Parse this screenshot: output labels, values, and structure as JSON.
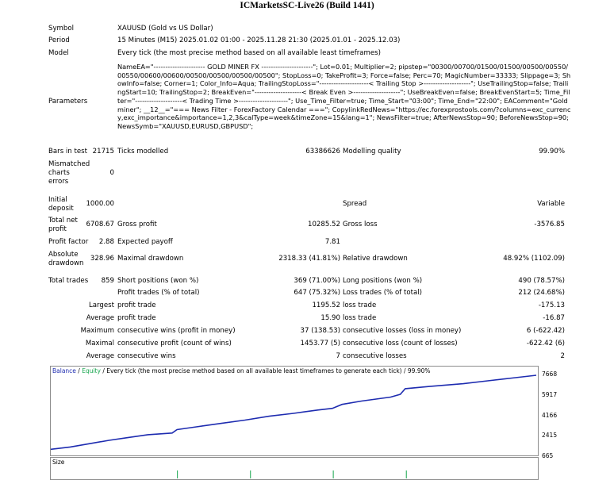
{
  "title": "ICMarketsSC-Live26 (Build 1441)",
  "info": {
    "symbol_label": "Symbol",
    "symbol_value": "XAUUSD (Gold vs US Dollar)",
    "period_label": "Period",
    "period_value": "15 Minutes (M15) 2025.01.02 01:00 - 2025.11.28 21:30 (2025.01.01 - 2025.12.03)",
    "model_label": "Model",
    "model_value": "Every tick (the most precise method based on all available least timeframes)",
    "parameters_label": "Parameters",
    "parameters_value": "NameEA=\"---------------------- GOLD MINER FX ----------------------\"; Lot=0.01; Multiplier=2; pipstep=\"00300/00700/01500/01500/00500/00550/00550/00600/00600/00500/00500/00500/00500\"; StopLoss=0; TakeProfit=3; Force=false; Perc=70; MagicNumber=33333; Slippage=3; ShowInfo=false; Corner=1; Color_Info=Aqua; TrailingStopLoss=\"---------------------< Trailing Stop >--------------------\"; UseTrailingStop=false; TrailingStart=10; TrailingStop=2; BreakEven=\"--------------------< Break Even >--------------------\"; UseBreakEven=false; BreakEvenStart=5; Time_Filter=\"--------------------< Trading Time >---------------------\"; Use_Time_Filter=true; Time_Start=\"03:00\"; Time_End=\"22:00\"; EAComment=\"Goldminer\"; __12__=\"=== News Filter - ForexFactory Calendar ===\"; CopylinkRedNews=\"https://ec.forexprostools.com/?columns=exc_currency,exc_importance&importance=1,2,3&calType=week&timeZone=15&lang=1\"; NewsFilter=true; AfterNewsStop=90; BeforeNewsStop=90; NewsSymb=\"XAUUSD,EURUSD,GBPUSD\";"
  },
  "stats": {
    "bars_label": "Bars in test",
    "bars_value": "21715",
    "ticks_label": "Ticks modelled",
    "ticks_value": "63386626",
    "quality_label": "Modelling quality",
    "quality_value": "99.90%",
    "mismatch_label_1": "Mismatched",
    "mismatch_label_2": "charts",
    "mismatch_label_3": "errors",
    "mismatch_value": "0",
    "deposit_label_1": "Initial",
    "deposit_label_2": "deposit",
    "deposit_value": "1000.00",
    "spread_label": "Spread",
    "spread_value": "Variable",
    "net_label_1": "Total net",
    "net_label_2": "profit",
    "net_value": "6708.67",
    "gross_profit_label": "Gross profit",
    "gross_profit_value": "10285.52",
    "gross_loss_label": "Gross loss",
    "gross_loss_value": "-3576.85",
    "pf_label": "Profit factor",
    "pf_value": "2.88",
    "payoff_label": "Expected payoff",
    "payoff_value": "7.81",
    "abs_dd_label_1": "Absolute",
    "abs_dd_label_2": "drawdown",
    "abs_dd_value": "328.96",
    "max_dd_label": "Maximal drawdown",
    "max_dd_value": "2318.33 (41.81%)",
    "rel_dd_label": "Relative drawdown",
    "rel_dd_value": "48.92% (1102.09)",
    "trades_label": "Total trades",
    "trades_value": "859",
    "short_label": "Short positions (won %)",
    "short_value": "369 (71.00%)",
    "long_label": "Long positions (won %)",
    "long_value": "490 (78.57%)",
    "profit_trades_label": "Profit trades (% of total)",
    "profit_trades_value": "647 (75.32%)",
    "loss_trades_label": "Loss trades (% of total)",
    "loss_trades_value": "212 (24.68%)",
    "largest_label": "Largest",
    "largest_profit_label": "profit trade",
    "largest_profit_value": "1195.52",
    "largest_loss_label": "loss trade",
    "largest_loss_value": "-175.13",
    "average_label": "Average",
    "avg_profit_label": "profit trade",
    "avg_profit_value": "15.90",
    "avg_loss_label": "loss trade",
    "avg_loss_value": "-16.87",
    "maximum_label": "Maximum",
    "max_cons_wins_label": "consecutive wins (profit in money)",
    "max_cons_wins_value": "37 (138.53)",
    "max_cons_losses_label": "consecutive losses (loss in money)",
    "max_cons_losses_value": "6 (-622.42)",
    "maximal_label": "Maximal",
    "maxl_cons_profit_label": "consecutive profit (count of wins)",
    "maxl_cons_profit_value": "1453.77 (5)",
    "maxl_cons_loss_label": "consecutive loss (count of losses)",
    "maxl_cons_loss_value": "-622.42 (6)",
    "average2_label": "Average",
    "avg_cons_wins_label": "consecutive wins",
    "avg_cons_wins_value": "7",
    "avg_cons_losses_label": "consecutive losses",
    "avg_cons_losses_value": "2"
  },
  "chart_data": {
    "type": "line",
    "legend": {
      "balance": "Balance",
      "sep1": " / ",
      "equity": "Equity",
      "rest": " / Every tick (the most precise method based on all available least timeframes to generate each tick) / 99.90%"
    },
    "yticks": [
      "7668",
      "5917",
      "4166",
      "2415",
      "665"
    ],
    "ylim": [
      665,
      7668
    ],
    "series": [
      {
        "name": "Balance",
        "color": "#1e2cb0",
        "x": [
          0,
          0.04,
          0.08,
          0.12,
          0.16,
          0.2,
          0.25,
          0.26,
          0.3,
          0.35,
          0.4,
          0.45,
          0.5,
          0.55,
          0.58,
          0.6,
          0.64,
          0.7,
          0.72,
          0.73,
          0.78,
          0.85,
          0.9,
          0.95,
          1.0
        ],
        "y": [
          1000,
          1200,
          1500,
          1800,
          2050,
          2300,
          2450,
          2750,
          3000,
          3300,
          3600,
          3950,
          4200,
          4500,
          4650,
          5000,
          5300,
          5650,
          5900,
          6400,
          6600,
          6850,
          7100,
          7350,
          7600
        ]
      }
    ],
    "size_title": "Size",
    "size_spikes": [
      0.26,
      0.41,
      0.58,
      0.73
    ]
  }
}
